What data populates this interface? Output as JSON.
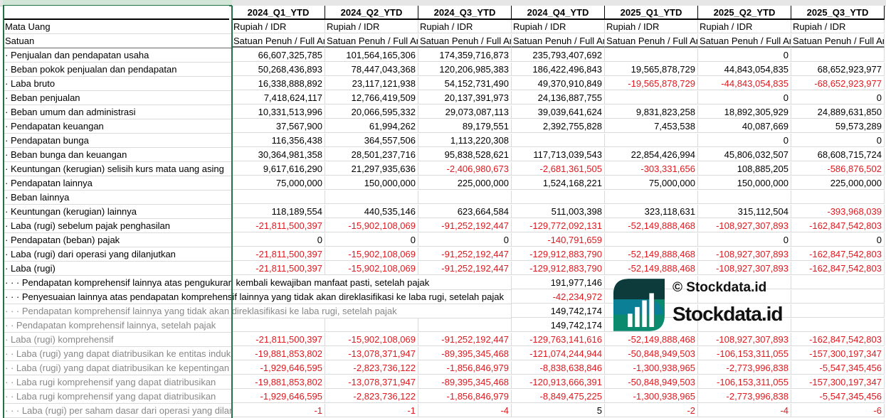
{
  "header": {
    "columns": [
      "2024_Q1_YTD",
      "2024_Q2_YTD",
      "2024_Q3_YTD",
      "2024_Q4_YTD",
      "2025_Q1_YTD",
      "2025_Q2_YTD",
      "2025_Q3_YTD"
    ]
  },
  "meta_rows": [
    {
      "label": "Mata Uang",
      "values": [
        "Rupiah / IDR",
        "Rupiah / IDR",
        "Rupiah / IDR",
        "Rupiah / IDR",
        "Rupiah / IDR",
        "Rupiah / IDR",
        "Rupiah / IDR"
      ]
    },
    {
      "label": "Satuan",
      "values": [
        "Satuan Penuh / Full Amount",
        "Satuan Penuh / Full Amount",
        "Satuan Penuh / Full Amount",
        "Satuan Penuh / Full Amount",
        "Satuan Penuh / Full Amount",
        "Satuan Penuh / Full Amount",
        "Satuan Penuh / Full Amount"
      ]
    }
  ],
  "rows": [
    {
      "label": "· Penjualan dan pendapatan usaha",
      "values": [
        "66,607,325,785",
        "101,564,165,306",
        "174,359,716,873",
        "235,793,407,692",
        null,
        "0",
        null
      ]
    },
    {
      "label": "· Beban pokok penjualan dan pendapatan",
      "values": [
        "50,268,436,893",
        "78,447,043,368",
        "120,206,985,383",
        "186,422,496,843",
        "19,565,878,729",
        "44,843,054,835",
        "68,652,923,977"
      ]
    },
    {
      "label": "· Laba bruto",
      "values": [
        "16,338,888,892",
        "23,117,121,938",
        "54,152,731,490",
        "49,370,910,849",
        "-19,565,878,729",
        "-44,843,054,835",
        "-68,652,923,977"
      ]
    },
    {
      "label": "· Beban penjualan",
      "values": [
        "7,418,624,117",
        "12,766,419,509",
        "20,137,391,973",
        "24,136,887,755",
        null,
        "0",
        "0"
      ]
    },
    {
      "label": "· Beban umum dan administrasi",
      "values": [
        "10,331,513,996",
        "20,066,595,332",
        "29,073,087,113",
        "39,039,641,624",
        "9,831,823,258",
        "18,892,305,929",
        "24,889,631,850"
      ]
    },
    {
      "label": "· Pendapatan keuangan",
      "values": [
        "37,567,900",
        "61,994,262",
        "89,179,551",
        "2,392,755,828",
        "7,453,538",
        "40,087,669",
        "59,573,289"
      ]
    },
    {
      "label": "· Pendapatan bunga",
      "values": [
        "116,356,438",
        "364,557,506",
        "1,113,220,308",
        null,
        null,
        "0",
        "0"
      ]
    },
    {
      "label": "· Beban bunga dan keuangan",
      "values": [
        "30,364,981,358",
        "28,501,237,716",
        "95,838,528,621",
        "117,713,039,543",
        "22,854,426,994",
        "45,806,032,507",
        "68,608,715,724"
      ]
    },
    {
      "label": "· Keuntungan (kerugian) selisih kurs mata uang asing",
      "values": [
        "9,617,616,290",
        "21,297,935,636",
        "-2,406,980,673",
        "-2,681,361,505",
        "-303,331,656",
        "108,885,205",
        "-586,876,502"
      ]
    },
    {
      "label": "· Pendapatan lainnya",
      "values": [
        "75,000,000",
        "150,000,000",
        "225,000,000",
        "1,524,168,221",
        "75,000,000",
        "150,000,000",
        "225,000,000"
      ]
    },
    {
      "label": "· Beban lainnya",
      "values": [
        null,
        null,
        null,
        null,
        null,
        null,
        null
      ]
    },
    {
      "label": "· Keuntungan (kerugian) lainnya",
      "values": [
        "118,189,554",
        "440,535,146",
        "623,664,584",
        "511,003,398",
        "323,118,631",
        "315,112,504",
        "-393,968,039"
      ]
    },
    {
      "label": "· Laba (rugi) sebelum pajak penghasilan",
      "values": [
        "-21,811,500,397",
        "-15,902,108,069",
        "-91,252,192,447",
        "-129,772,092,131",
        "-52,149,888,468",
        "-108,927,307,893",
        "-162,847,542,803"
      ]
    },
    {
      "label": "· Pendapatan (beban) pajak",
      "values": [
        "0",
        "0",
        "0",
        "-140,791,659",
        null,
        "0",
        "0"
      ]
    },
    {
      "label": "· Laba (rugi) dari operasi yang dilanjutkan",
      "values": [
        "-21,811,500,397",
        "-15,902,108,069",
        "-91,252,192,447",
        "-129,912,883,790",
        "-52,149,888,468",
        "-108,927,307,893",
        "-162,847,542,803"
      ]
    },
    {
      "label": "· Laba (rugi)",
      "values": [
        "-21,811,500,397",
        "-15,902,108,069",
        "-91,252,192,447",
        "-129,912,883,790",
        "-52,149,888,468",
        "-108,927,307,893",
        "-162,847,542,803"
      ]
    },
    {
      "label": "· · · Pendapatan komprehensif lainnya atas pengukuran kembali kewajiban manfaat pasti, setelah pajak",
      "values": [
        null,
        null,
        null,
        "191,977,146",
        null,
        null,
        null
      ],
      "span": 4
    },
    {
      "label": "· · · Penyesuaian lainnya atas pendapatan komprehensif lainnya yang tidak akan direklasifikasi ke laba rugi, setelah pajak",
      "values": [
        null,
        null,
        null,
        "-42,234,972",
        null,
        null,
        null
      ],
      "span": 4
    },
    {
      "label": "· · · Pendapatan komprehensif lainnya yang tidak akan direklasifikasi ke laba rugi, setelah pajak",
      "values": [
        null,
        null,
        null,
        "149,742,174",
        null,
        null,
        null
      ],
      "span": 4,
      "grey": true
    },
    {
      "label": "· · Pendapatan komprehensif lainnya, setelah pajak",
      "values": [
        null,
        null,
        null,
        "149,742,174",
        null,
        null,
        null
      ],
      "grey": true
    },
    {
      "label": "· Laba (rugi) komprehensif",
      "values": [
        "-21,811,500,397",
        "-15,902,108,069",
        "-91,252,192,447",
        "-129,763,141,616",
        "-52,149,888,468",
        "-108,927,307,893",
        "-162,847,542,803"
      ],
      "grey": true
    },
    {
      "label": "· · Laba (rugi) yang dapat diatribusikan ke entitas induk",
      "values": [
        "-19,881,853,802",
        "-13,078,371,947",
        "-89,395,345,468",
        "-121,074,244,944",
        "-50,848,949,503",
        "-106,153,311,055",
        "-157,300,197,347"
      ],
      "grey": true
    },
    {
      "label": "· · Laba (rugi) yang dapat diatribusikan ke kepentingan non-pengendali",
      "values": [
        "-1,929,646,595",
        "-2,823,736,122",
        "-1,856,846,979",
        "-8,838,638,846",
        "-1,300,938,965",
        "-2,773,996,838",
        "-5,547,345,456"
      ],
      "grey": true
    },
    {
      "label": "· · Laba rugi komprehensif yang dapat diatribusikan",
      "values": [
        "-19,881,853,802",
        "-13,078,371,947",
        "-89,395,345,468",
        "-120,913,666,391",
        "-50,848,949,503",
        "-106,153,311,055",
        "-157,300,197,347"
      ],
      "grey": true
    },
    {
      "label": "· · Laba rugi komprehensif yang dapat diatribusikan",
      "values": [
        "-1,929,646,595",
        "-2,823,736,122",
        "-1,856,846,979",
        "-8,849,475,225",
        "-1,300,938,965",
        "-2,773,996,838",
        "-5,547,345,456"
      ],
      "grey": true
    },
    {
      "label": "· · · Laba (rugi) per saham dasar dari operasi yang dilanjutkan",
      "values": [
        "-1",
        "-1",
        "-4",
        "5",
        "-2",
        "-4",
        "-6"
      ],
      "grey": true
    }
  ],
  "watermark": {
    "copyright": "© Stockdata.id",
    "brand": "Stockdata.id"
  },
  "colors": {
    "negative": "#e0191f",
    "selection": "#217346"
  }
}
